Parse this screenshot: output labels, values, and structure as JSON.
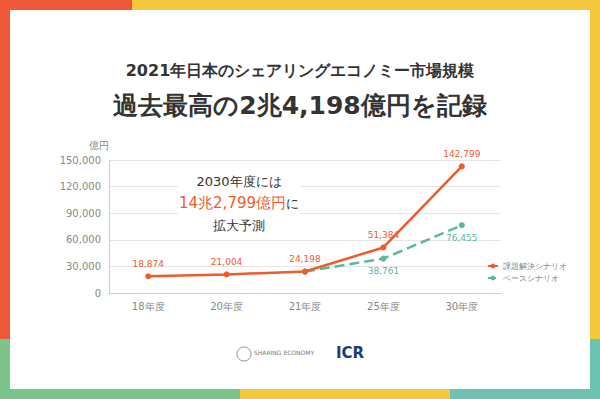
{
  "chart_data": {
    "type": "line",
    "title": "2021年日本のシェアリングエコノミー市場規模",
    "subtitle": "過去最高の2兆4,198億円を記録",
    "y_label": "億円",
    "annotation": {
      "lines": [
        "2030年度には",
        "14兆2,799億円に",
        "拡大予測"
      ],
      "highlight": "14兆2,799億円"
    },
    "logos": [
      "SHARING ECONOMY",
      "ICR"
    ],
    "categories": [
      "18年度",
      "20年度",
      "21年度",
      "25年度",
      "30年度"
    ],
    "series": [
      {
        "name": "課題解決シナリオ",
        "color": "#f15a2b",
        "marker": "circle",
        "line_style": "solid",
        "values": [
          18874,
          21004,
          24198,
          51384,
          142799
        ],
        "value_labels": [
          "18,874",
          "21,004",
          "24,198",
          "51,384",
          "142,799"
        ]
      },
      {
        "name": "ベースシナリオ",
        "color": "#5cb8a0",
        "marker": "circle",
        "line_style": "dashed",
        "values": [
          null,
          null,
          24198,
          38761,
          76455
        ],
        "value_labels": [
          null,
          null,
          null,
          "38,761",
          "76,455"
        ]
      }
    ],
    "ylim": [
      0,
      150000
    ],
    "yticks": [
      0,
      {
        "value": 30000,
        "label": "30,000"
      },
      {
        "value": 60000,
        "label": "60,000"
      },
      {
        "value": 90000,
        "label": "90,000"
      },
      {
        "value": 120000,
        "label": "120,000"
      },
      {
        "value": 150000,
        "label": "150,000"
      }
    ],
    "grid": true,
    "data_labels": true,
    "legend": "lower right"
  }
}
